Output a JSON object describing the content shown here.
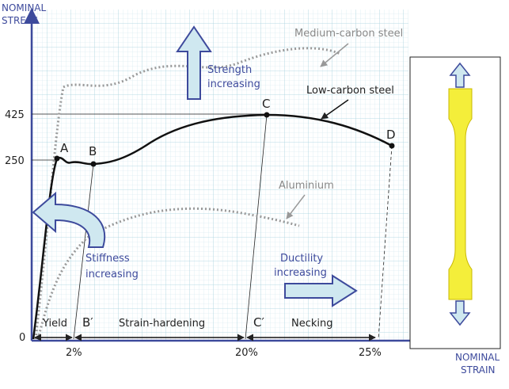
{
  "axes": {
    "y_label": [
      "NOMINAL",
      "STRESS"
    ],
    "x_label": [
      "NOMINAL",
      "STRAIN"
    ],
    "origin": "0",
    "y_ticks": [
      "425",
      "250"
    ],
    "x_ticks": [
      "2%",
      "20%",
      "25%"
    ]
  },
  "points": [
    "A",
    "B",
    "C",
    "D",
    "B′",
    "C′"
  ],
  "curves": [
    "Medium-carbon steel",
    "Low-carbon steel",
    "Aluminium"
  ],
  "annotations": {
    "strength": [
      "Strength",
      "increasing"
    ],
    "stiffness": [
      "Stiffness",
      "increasing"
    ],
    "ductility": [
      "Ductility",
      "increasing"
    ]
  },
  "regions": [
    "Yield",
    "Strain-hardening",
    "Necking"
  ]
}
